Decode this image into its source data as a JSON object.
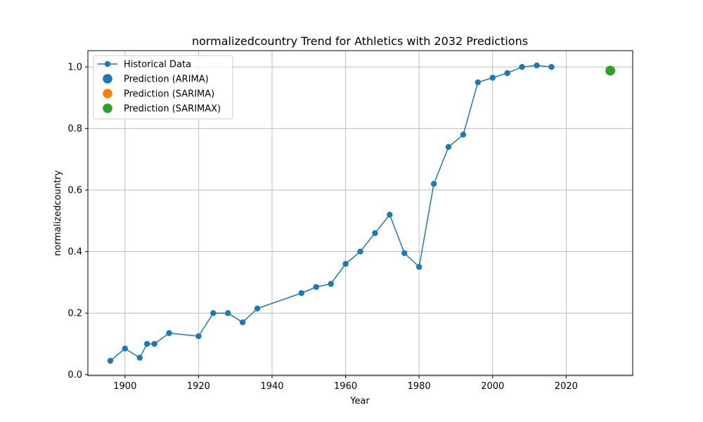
{
  "chart_data": {
    "type": "line",
    "title": "normalizedcountry Trend for Athletics with 2032 Predictions",
    "xlabel": "Year",
    "ylabel": "normalizedcountry",
    "xlim": [
      1889.9,
      2038.1
    ],
    "ylim": [
      -0.003,
      1.053
    ],
    "xticks": [
      1900,
      1920,
      1940,
      1960,
      1980,
      2000,
      2020
    ],
    "yticks": [
      0.0,
      0.2,
      0.4,
      0.6,
      0.8,
      1.0
    ],
    "grid": true,
    "legend_position": "top-left",
    "series": [
      {
        "name": "Historical Data",
        "style": "line-marker",
        "color": "#1f77b4",
        "x": [
          1896,
          1900,
          1904,
          1906,
          1908,
          1912,
          1920,
          1924,
          1928,
          1932,
          1936,
          1948,
          1952,
          1956,
          1960,
          1964,
          1968,
          1972,
          1976,
          1980,
          1984,
          1988,
          1992,
          1996,
          2000,
          2004,
          2008,
          2012,
          2016
        ],
        "y": [
          0.045,
          0.085,
          0.055,
          0.1,
          0.1,
          0.135,
          0.125,
          0.2,
          0.2,
          0.17,
          0.215,
          0.265,
          0.285,
          0.295,
          0.36,
          0.4,
          0.46,
          0.52,
          0.395,
          0.35,
          0.62,
          0.74,
          0.78,
          0.95,
          0.965,
          0.98,
          1.0,
          1.005,
          1.0
        ]
      },
      {
        "name": "Prediction (ARIMA)",
        "style": "scatter",
        "color": "#1f77b4",
        "x": [
          2032
        ],
        "y": [
          0.988
        ]
      },
      {
        "name": "Prediction (SARIMA)",
        "style": "scatter",
        "color": "#ff7f0e",
        "x": [
          2032
        ],
        "y": [
          0.988
        ]
      },
      {
        "name": "Prediction (SARIMAX)",
        "style": "scatter",
        "color": "#2ca02c",
        "x": [
          2032
        ],
        "y": [
          0.988
        ]
      }
    ]
  }
}
